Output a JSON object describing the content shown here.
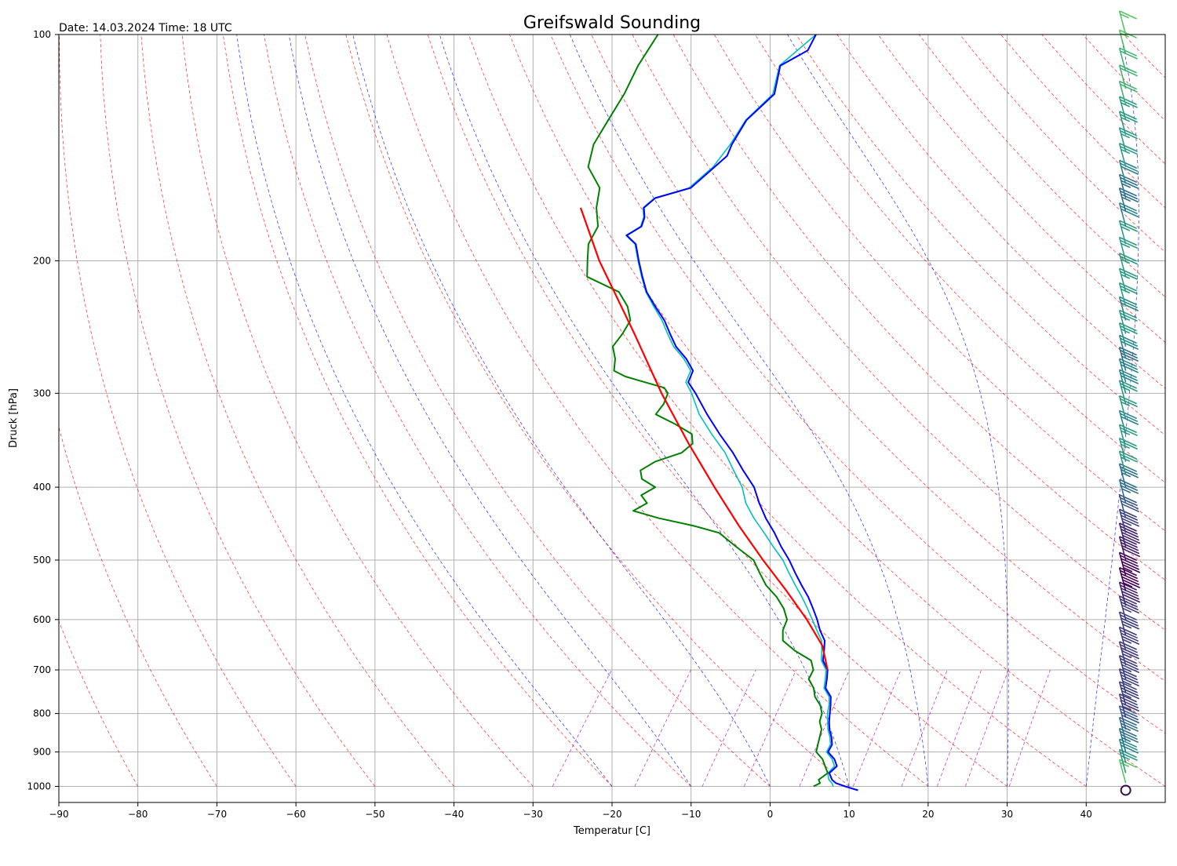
{
  "chart_data": {
    "type": "line",
    "title": "Greifswald Sounding",
    "subtitle": "Date: 14.03.2024 Time: 18 UTC",
    "xlabel": "Temperatur [C]",
    "ylabel": "Druck [hPa]",
    "xlim": [
      -90,
      50
    ],
    "ylim_hpa": [
      1050,
      100
    ],
    "y_scale": "log",
    "grid": true,
    "x_ticks": [
      -90,
      -80,
      -70,
      -60,
      -50,
      -40,
      -30,
      -20,
      -10,
      0,
      10,
      20,
      30,
      40
    ],
    "y_ticks": [
      100,
      200,
      300,
      400,
      500,
      600,
      700,
      800,
      900,
      1000
    ],
    "colors": {
      "temperature": "#0000ff",
      "virtual_temperature": "#00c0c0",
      "dewpoint": "#008000",
      "parcel": "#ff0000",
      "dry_adiabats": "#ff0000",
      "moist_adiabats": "#0000ff",
      "mixing_ratio": "#c000c0",
      "grid": "#b0b0b0"
    },
    "series": [
      {
        "key": "temperature",
        "pressure": [
          1012,
          1000,
          990,
          980,
          960,
          940,
          920,
          900,
          880,
          860,
          840,
          820,
          800,
          780,
          760,
          740,
          720,
          700,
          680,
          660,
          640,
          620,
          600,
          580,
          560,
          540,
          520,
          500,
          480,
          460,
          440,
          420,
          400,
          380,
          360,
          340,
          320,
          300,
          290,
          280,
          270,
          260,
          250,
          240,
          230,
          220,
          210,
          200,
          190,
          185,
          180,
          175,
          170,
          165,
          160,
          150,
          145,
          140,
          130,
          120,
          110,
          105,
          100
        ],
        "values": [
          11.5,
          9.5,
          8.0,
          7.2,
          6.2,
          6.5,
          5.5,
          4.0,
          3.8,
          3.0,
          2.0,
          1.2,
          0.5,
          -0.2,
          -1.0,
          -2.5,
          -3.2,
          -4.0,
          -5.5,
          -6.3,
          -7.2,
          -8.8,
          -10.2,
          -11.8,
          -13.5,
          -15.5,
          -17.5,
          -19.5,
          -21.8,
          -24.0,
          -26.5,
          -28.8,
          -31.0,
          -34.0,
          -37.0,
          -40.5,
          -44.0,
          -47.5,
          -49.5,
          -50.0,
          -52.0,
          -54.5,
          -56.5,
          -58.5,
          -61.0,
          -63.5,
          -65.5,
          -67.5,
          -69.5,
          -71.5,
          -70.5,
          -71.0,
          -72.0,
          -71.5,
          -68.0,
          -67.0,
          -66.5,
          -67.0,
          -67.5,
          -66.5,
          -68.5,
          -66.5,
          -67.0
        ]
      },
      {
        "key": "virtual_temperature",
        "pressure": [
          1000,
          990,
          980,
          960,
          940,
          920,
          900,
          880,
          860,
          840,
          820,
          800,
          780,
          760,
          740,
          720,
          700,
          680,
          660,
          640,
          620,
          600,
          580,
          560,
          540,
          520,
          500,
          480,
          460,
          440,
          420,
          400,
          380,
          360,
          340,
          320,
          300,
          290,
          280,
          270,
          260,
          250,
          240,
          230,
          220,
          210,
          200,
          190,
          185,
          180,
          175,
          170,
          165,
          160,
          150,
          140,
          130,
          120,
          110,
          100
        ],
        "values": [
          8.0,
          7.5,
          6.8,
          6.0,
          6.2,
          5.2,
          3.8,
          3.6,
          2.8,
          1.8,
          1.0,
          0.2,
          -0.4,
          -1.2,
          -2.7,
          -3.4,
          -4.2,
          -5.7,
          -6.6,
          -7.6,
          -9.2,
          -10.8,
          -12.5,
          -14.3,
          -16.3,
          -18.3,
          -20.3,
          -22.8,
          -25.3,
          -28.0,
          -30.5,
          -32.5,
          -35.2,
          -38.0,
          -41.5,
          -45.0,
          -48.0,
          -49.8,
          -50.3,
          -52.3,
          -54.8,
          -56.8,
          -58.8,
          -61.2,
          -63.6,
          -65.6,
          -67.6,
          -69.6,
          -71.6,
          -70.6,
          -71.1,
          -72.1,
          -71.6,
          -68.2,
          -67.2,
          -67.2,
          -67.6,
          -66.7,
          -68.6,
          -67.0
        ]
      },
      {
        "key": "dewpoint",
        "pressure": [
          1000,
          990,
          980,
          960,
          940,
          920,
          900,
          880,
          860,
          840,
          820,
          800,
          780,
          760,
          740,
          720,
          700,
          680,
          660,
          640,
          620,
          600,
          580,
          560,
          540,
          520,
          500,
          480,
          460,
          450,
          440,
          430,
          420,
          410,
          400,
          390,
          380,
          370,
          360,
          350,
          340,
          330,
          320,
          310,
          300,
          295,
          290,
          285,
          280,
          270,
          260,
          250,
          240,
          230,
          220,
          210,
          200,
          190,
          180,
          170,
          160,
          150,
          140,
          130,
          120,
          110,
          100
        ],
        "values": [
          5.5,
          6.0,
          5.5,
          6.0,
          5.0,
          4.0,
          2.5,
          2.0,
          1.5,
          1.0,
          0.0,
          -0.5,
          -1.5,
          -3.0,
          -4.0,
          -5.5,
          -5.8,
          -7.0,
          -10.0,
          -12.5,
          -13.5,
          -14.0,
          -15.5,
          -17.5,
          -20.0,
          -22.0,
          -24.0,
          -27.5,
          -31.0,
          -35.0,
          -40.0,
          -44.0,
          -43.0,
          -44.5,
          -43.5,
          -46.0,
          -47.0,
          -46.0,
          -43.5,
          -43.0,
          -44.0,
          -47.0,
          -50.5,
          -50.5,
          -51.0,
          -52.0,
          -55.0,
          -58.0,
          -60.0,
          -61.0,
          -62.5,
          -62.5,
          -62.8,
          -64.5,
          -67.0,
          -72.5,
          -74.0,
          -75.5,
          -76.0,
          -78.0,
          -79.5,
          -83.0,
          -84.5,
          -85.0,
          -85.5,
          -86.5,
          -87.0
        ]
      },
      {
        "key": "parcel",
        "pressure": [
          700,
          650,
          600,
          550,
          500,
          450,
          400,
          350,
          300,
          250,
          200,
          170
        ],
        "values": [
          -4.0,
          -7.0,
          -11.5,
          -16.8,
          -22.8,
          -29.2,
          -36.0,
          -43.5,
          -51.8,
          -61.0,
          -72.5,
          -80.0
        ]
      }
    ],
    "wind_barbs": {
      "x_position_temp": 45,
      "pressure": [
        1012,
        990,
        960,
        930,
        900,
        870,
        840,
        810,
        780,
        750,
        720,
        690,
        660,
        630,
        600,
        575,
        550,
        525,
        500,
        480,
        460,
        440,
        420,
        400,
        385,
        370,
        355,
        340,
        325,
        310,
        300,
        290,
        280,
        270,
        260,
        250,
        240,
        230,
        220,
        210,
        200,
        190,
        180,
        172,
        165,
        158,
        150,
        143,
        136,
        130,
        124,
        118,
        112,
        106,
        100
      ],
      "speed_kt": [
        0,
        15,
        25,
        30,
        35,
        35,
        40,
        45,
        45,
        45,
        45,
        45,
        45,
        45,
        45,
        50,
        55,
        55,
        50,
        50,
        45,
        40,
        35,
        35,
        25,
        25,
        25,
        30,
        25,
        25,
        30,
        30,
        35,
        30,
        25,
        25,
        30,
        25,
        25,
        25,
        25,
        25,
        30,
        35,
        35,
        30,
        25,
        25,
        25,
        25,
        20,
        20,
        20,
        15,
        15
      ]
    }
  }
}
